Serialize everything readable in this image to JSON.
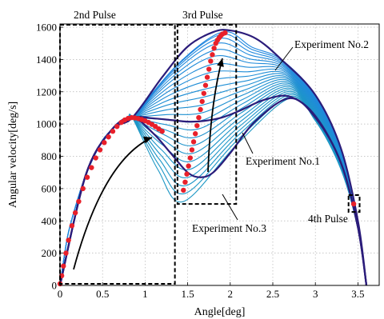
{
  "chart_data": {
    "type": "line",
    "title": "",
    "xlabel": "Angle[deg]",
    "ylabel": "Angular velocity[deg/s]",
    "xlim": [
      0,
      3.75
    ],
    "ylim": [
      0,
      1620
    ],
    "grid": true,
    "x_ticks": [
      0,
      0.5,
      1,
      1.5,
      2,
      2.5,
      3,
      3.5
    ],
    "x_tick_labels": [
      "0",
      "0.5",
      "1",
      "1.5",
      "2",
      "2.5",
      "3",
      "3.5"
    ],
    "y_ticks": [
      0,
      200,
      400,
      600,
      800,
      1000,
      1200,
      1400,
      1600
    ],
    "y_tick_labels": [
      "0",
      "200",
      "400",
      "600",
      "800",
      "1000",
      "1200",
      "1400",
      "1600"
    ],
    "colors": {
      "family": "#1aa3d8",
      "highlight": "#2b1c7a",
      "markers": "#e8202a",
      "boxes": "#000000"
    },
    "series": [
      {
        "role": "family",
        "count": 24,
        "common_path": {
          "x": [
            0,
            0.05,
            0.1,
            0.2,
            0.3,
            0.4,
            0.5,
            0.6,
            0.7,
            0.8,
            0.85
          ],
          "y": [
            0,
            180,
            330,
            520,
            680,
            800,
            900,
            960,
            1005,
            1030,
            1040
          ]
        },
        "min_points": {
          "x": [
            1.45,
            1.47,
            1.49,
            1.51,
            1.53,
            1.55,
            1.57,
            1.59,
            1.61,
            1.63,
            1.65,
            1.67,
            1.69,
            1.71,
            1.73,
            1.75,
            1.77,
            1.79,
            1.81,
            1.83,
            1.85,
            1.87,
            1.89,
            1.91
          ],
          "y": [
            520,
            570,
            620,
            670,
            720,
            770,
            820,
            870,
            920,
            970,
            1020,
            1070,
            1120,
            1170,
            1220,
            1270,
            1320,
            1370,
            1420,
            1460,
            1500,
            1530,
            1555,
            1570
          ]
        },
        "end_paths": {
          "low": {
            "x": [
              2.7,
              3.0,
              3.3,
              3.5,
              3.6
            ],
            "y": [
              1160,
              1020,
              720,
              350,
              0
            ]
          },
          "high": {
            "x": [
              2.6,
              3.0,
              3.3,
              3.5,
              3.6
            ],
            "y": [
              1400,
              1180,
              850,
              400,
              0
            ]
          }
        }
      },
      {
        "name": "Experiment No.2",
        "role": "highlight",
        "x": [
          0,
          0.3,
          0.6,
          0.85,
          1.2,
          1.5,
          1.8,
          2.0,
          2.3,
          2.6,
          3.0,
          3.3,
          3.5,
          3.6
        ],
        "y": [
          0,
          680,
          960,
          1040,
          1290,
          1480,
          1570,
          1580,
          1530,
          1400,
          1180,
          850,
          400,
          0
        ]
      },
      {
        "name": "Experiment No.1",
        "role": "highlight",
        "x": [
          0,
          0.3,
          0.6,
          0.85,
          1.1,
          1.3,
          1.5,
          1.7,
          1.9,
          2.1,
          2.4,
          2.7,
          3.0,
          3.3,
          3.5,
          3.6
        ],
        "y": [
          0,
          680,
          960,
          1040,
          1035,
          1025,
          1015,
          1020,
          1040,
          1080,
          1150,
          1170,
          1050,
          760,
          360,
          0
        ]
      },
      {
        "name": "Experiment No.3",
        "role": "highlight",
        "x": [
          0,
          0.3,
          0.6,
          0.85,
          1.1,
          1.3,
          1.5,
          1.65,
          1.8,
          2.0,
          2.3,
          2.7,
          3.0,
          3.3,
          3.5,
          3.6
        ],
        "y": [
          0,
          680,
          960,
          1040,
          940,
          820,
          700,
          670,
          700,
          820,
          1020,
          1160,
          1040,
          760,
          360,
          0
        ]
      },
      {
        "role": "markers",
        "x": [
          0,
          0.02,
          0.04,
          0.07,
          0.1,
          0.14,
          0.18,
          0.22,
          0.27,
          0.32,
          0.37,
          0.42,
          0.47,
          0.52,
          0.57,
          0.62,
          0.67,
          0.72,
          0.76,
          0.8,
          0.84,
          0.88,
          0.92,
          0.96,
          1.0,
          1.04,
          1.08,
          1.12,
          1.16,
          1.2,
          1.45,
          1.47,
          1.49,
          1.51,
          1.53,
          1.55,
          1.57,
          1.59,
          1.61,
          1.63,
          1.65,
          1.67,
          1.69,
          1.71,
          1.73,
          1.75,
          1.77,
          1.79,
          1.81,
          1.83,
          1.85,
          1.87,
          1.89,
          1.91,
          1.94,
          3.45
        ],
        "y": [
          10,
          60,
          120,
          200,
          280,
          370,
          450,
          520,
          600,
          670,
          730,
          790,
          840,
          885,
          920,
          955,
          985,
          1010,
          1025,
          1035,
          1040,
          1038,
          1034,
          1028,
          1020,
          1010,
          998,
          985,
          970,
          955,
          590,
          640,
          690,
          740,
          790,
          840,
          890,
          940,
          990,
          1040,
          1090,
          1140,
          1190,
          1240,
          1290,
          1340,
          1390,
          1430,
          1470,
          1500,
          1520,
          1535,
          1548,
          1558,
          1565,
          505
        ]
      }
    ],
    "annotations": [
      {
        "text": "2nd Pulse"
      },
      {
        "text": "3rd Pulse"
      },
      {
        "text": "Experiment No.2"
      },
      {
        "text": "Experiment No.1"
      },
      {
        "text": "Experiment No.3"
      },
      {
        "text": "4th Pulse"
      }
    ],
    "boxes": [
      {
        "x": [
          0,
          1.35
        ],
        "y": [
          10,
          1615
        ]
      },
      {
        "x": [
          1.38,
          2.07
        ],
        "y": [
          505,
          1615
        ]
      },
      {
        "x": [
          3.39,
          3.52
        ],
        "y": [
          455,
          560
        ]
      }
    ]
  }
}
